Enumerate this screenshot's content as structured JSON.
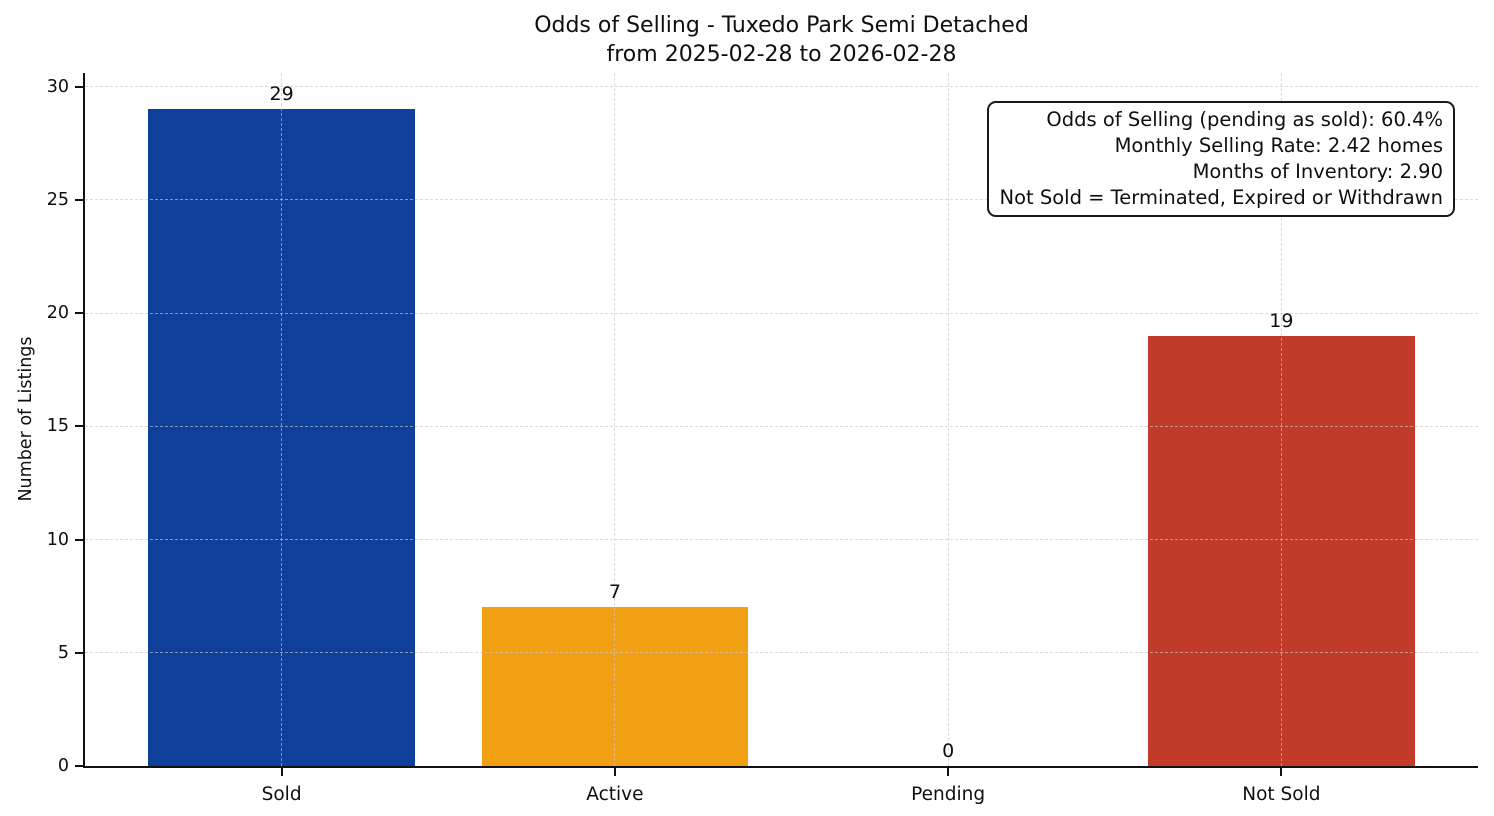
{
  "figure": {
    "title_line1": "Odds of Selling - Tuxedo Park Semi Detached",
    "title_line2": "from 2025-02-28 to 2026-02-28"
  },
  "chart_data": {
    "type": "bar",
    "title": "Odds of Selling - Tuxedo Park Semi Detached\nfrom 2025-02-28 to 2026-02-28",
    "categories": [
      "Sold",
      "Active",
      "Pending",
      "Not Sold"
    ],
    "values": [
      29,
      7,
      0,
      19
    ],
    "value_labels": [
      "29",
      "7",
      "0",
      "19"
    ],
    "bar_colors": [
      "#0e3f9a",
      "#f2a013",
      null,
      "#c23a2a"
    ],
    "xlabel": "",
    "ylabel": "Number of Listings",
    "ylim": [
      0,
      30.6
    ],
    "yticks": [
      0,
      5,
      10,
      15,
      20,
      25,
      30
    ],
    "grid": "both-axes-dashed",
    "legend_position": "none",
    "annotation_box": "top-right"
  },
  "annotation": {
    "lines": [
      "Odds of Selling (pending as sold): 60.4%",
      "Monthly Selling Rate: 2.42 homes",
      "Months of Inventory: 2.90",
      "Not Sold = Terminated, Expired or Withdrawn"
    ]
  },
  "colors": {
    "sold_bar": "#0e3f9a",
    "active_bar": "#f2a013",
    "not_sold_bar": "#c23a2a",
    "gridline": "#d9d9d9",
    "axis": "#111111",
    "background": "#ffffff"
  }
}
